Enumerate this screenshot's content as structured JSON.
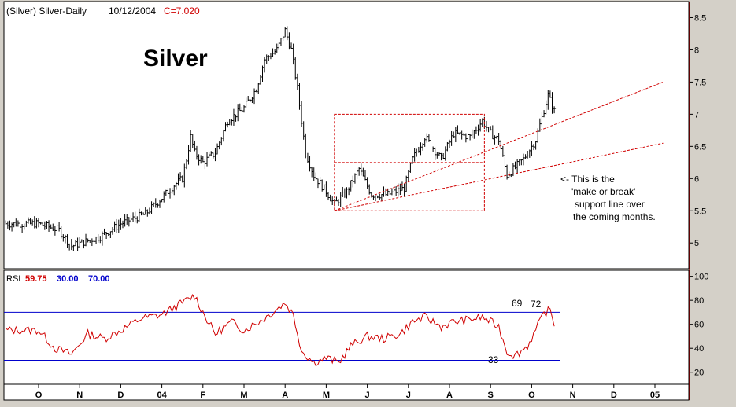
{
  "header": {
    "symbol": "(Silver) Silver-Daily",
    "date": "10/12/2004",
    "close_label": "C=7.020"
  },
  "chart_data": [
    {
      "type": "bar",
      "subtype": "ohlc",
      "title": "Silver",
      "x_axis_labels": [
        "O",
        "N",
        "D",
        "04",
        "F",
        "M",
        "A",
        "M",
        "J",
        "J",
        "A",
        "S",
        "O",
        "N",
        "D",
        "05"
      ],
      "y_ticks": [
        "8.5",
        "8",
        "7.5",
        "7",
        "6.5",
        "6",
        "5.5",
        "5"
      ],
      "ylim": [
        4.6,
        8.75
      ],
      "last_close": 7.02,
      "close_series_points": [
        [
          0,
          5.3
        ],
        [
          0.5,
          5.2
        ],
        [
          0.8,
          4.95
        ],
        [
          1.5,
          5.1
        ],
        [
          2,
          5.3
        ],
        [
          2.6,
          5.45
        ],
        [
          3,
          5.7
        ],
        [
          3.3,
          5.9
        ],
        [
          3.5,
          6.0
        ],
        [
          3.6,
          6.3
        ],
        [
          3.7,
          6.65
        ],
        [
          3.8,
          6.4
        ],
        [
          4,
          6.25
        ],
        [
          4.3,
          6.4
        ],
        [
          4.6,
          6.9
        ],
        [
          5,
          7.1
        ],
        [
          5.3,
          7.4
        ],
        [
          5.5,
          7.85
        ],
        [
          5.8,
          8.0
        ],
        [
          6,
          8.3
        ],
        [
          6.15,
          8.0
        ],
        [
          6.3,
          7.4
        ],
        [
          6.4,
          6.9
        ],
        [
          6.5,
          6.4
        ],
        [
          6.7,
          6.05
        ],
        [
          7,
          5.8
        ],
        [
          7.2,
          5.6
        ],
        [
          7.5,
          5.8
        ],
        [
          7.8,
          6.15
        ],
        [
          8.1,
          5.75
        ],
        [
          8.5,
          5.75
        ],
        [
          8.9,
          5.85
        ],
        [
          9.1,
          6.3
        ],
        [
          9.4,
          6.65
        ],
        [
          9.8,
          6.3
        ],
        [
          10.1,
          6.7
        ],
        [
          10.5,
          6.65
        ],
        [
          10.8,
          6.9
        ],
        [
          11,
          6.7
        ],
        [
          11.2,
          6.6
        ],
        [
          11.4,
          6.05
        ],
        [
          11.8,
          6.3
        ],
        [
          12.1,
          6.6
        ],
        [
          12.4,
          7.3
        ],
        [
          12.55,
          7.05
        ]
      ],
      "annotations": [
        "<- This is the",
        "'make or break'",
        "support line over",
        "the coming months."
      ],
      "rectangle_levels": [
        7.0,
        6.25,
        5.9,
        5.5
      ],
      "trendlines": [
        {
          "from": [
            7.2,
            5.5
          ],
          "to": [
            15.2,
            7.5
          ]
        },
        {
          "from": [
            7.2,
            5.5
          ],
          "to": [
            15.2,
            6.55
          ]
        }
      ],
      "grid": false
    },
    {
      "type": "line",
      "indicator": "RSI",
      "legend": {
        "label": "RSI",
        "value": "59.75",
        "low": "30.00",
        "high": "70.00"
      },
      "y_ticks": [
        "100",
        "80",
        "60",
        "40",
        "20"
      ],
      "ylim": [
        10,
        105
      ],
      "levels": [
        70,
        30
      ],
      "labels": [
        "69",
        "72",
        "33"
      ],
      "rsi_points": [
        [
          0,
          55
        ],
        [
          0.4,
          40
        ],
        [
          0.8,
          35
        ],
        [
          1.2,
          52
        ],
        [
          1.6,
          48
        ],
        [
          2,
          55
        ],
        [
          2.5,
          65
        ],
        [
          3,
          68
        ],
        [
          3.5,
          78
        ],
        [
          3.8,
          84
        ],
        [
          4,
          70
        ],
        [
          4.3,
          52
        ],
        [
          4.7,
          62
        ],
        [
          5,
          55
        ],
        [
          5.5,
          65
        ],
        [
          6,
          78
        ],
        [
          6.2,
          68
        ],
        [
          6.4,
          38
        ],
        [
          6.7,
          28
        ],
        [
          7,
          32
        ],
        [
          7.3,
          28
        ],
        [
          7.6,
          42
        ],
        [
          8,
          50
        ],
        [
          8.4,
          48
        ],
        [
          8.8,
          52
        ],
        [
          9.1,
          62
        ],
        [
          9.4,
          66
        ],
        [
          9.8,
          58
        ],
        [
          10.1,
          62
        ],
        [
          10.5,
          64
        ],
        [
          10.8,
          66
        ],
        [
          11,
          62
        ],
        [
          11.2,
          58
        ],
        [
          11.4,
          37
        ],
        [
          11.6,
          34
        ],
        [
          11.9,
          42
        ],
        [
          12.1,
          55
        ],
        [
          12.3,
          69
        ],
        [
          12.45,
          72
        ],
        [
          12.55,
          60
        ]
      ]
    }
  ]
}
